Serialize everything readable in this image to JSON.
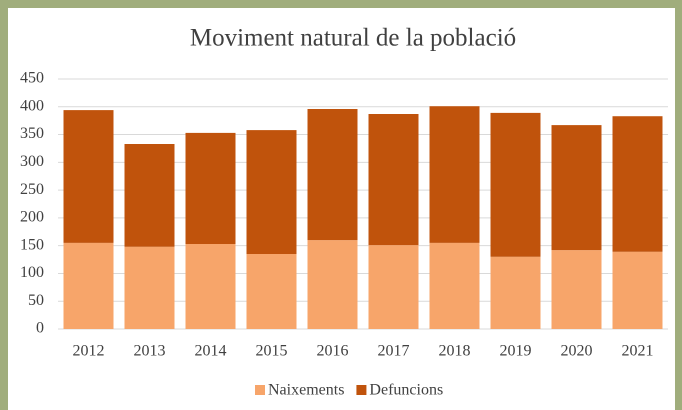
{
  "chart_data": {
    "type": "stacked-bar",
    "title": "Moviment natural de la població",
    "categories": [
      "2012",
      "2013",
      "2014",
      "2015",
      "2016",
      "2017",
      "2018",
      "2019",
      "2020",
      "2021"
    ],
    "series": [
      {
        "name": "Naixements",
        "color": "#f7a56a",
        "values": [
          155,
          148,
          153,
          135,
          160,
          151,
          155,
          130,
          142,
          139
        ]
      },
      {
        "name": "Defuncions",
        "color": "#c0530c",
        "values": [
          239,
          185,
          200,
          223,
          236,
          236,
          246,
          259,
          225,
          244
        ]
      }
    ],
    "ylim": [
      0,
      450
    ],
    "yticks": [
      0,
      50,
      100,
      150,
      200,
      250,
      300,
      350,
      400,
      450
    ],
    "grid": true,
    "legend": "bottom"
  }
}
